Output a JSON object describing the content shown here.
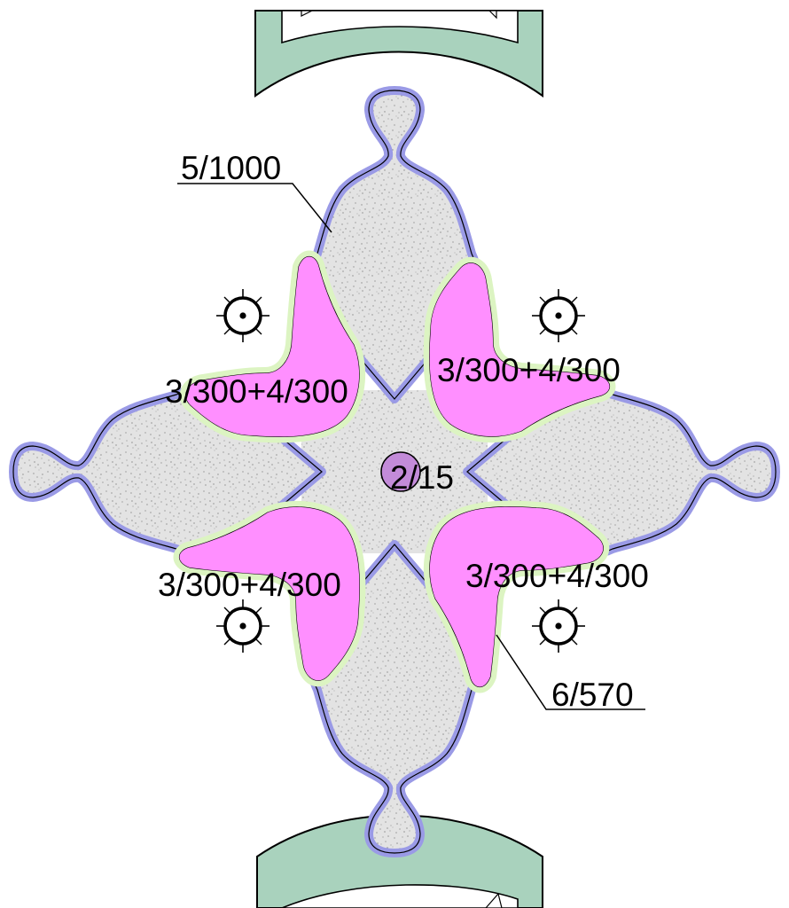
{
  "labels": {
    "top_left": "5/1000",
    "upper_left": "3/300+4/300",
    "upper_right": "3/300+4/300",
    "center": "2/15",
    "lower_left": "3/300+4/300",
    "lower_right": "3/300+4/300",
    "bottom_right": "6/570"
  },
  "colors": {
    "border_band": "#a9d2bd",
    "gravel_fill": "#e3e3e3",
    "blue_outline": "#9a9ae6",
    "green_outline": "#dcf4c2",
    "pink_fill": "#ff8fff",
    "center_dot": "#c38bd9"
  },
  "icons": [
    "tree-symbol-icon"
  ]
}
